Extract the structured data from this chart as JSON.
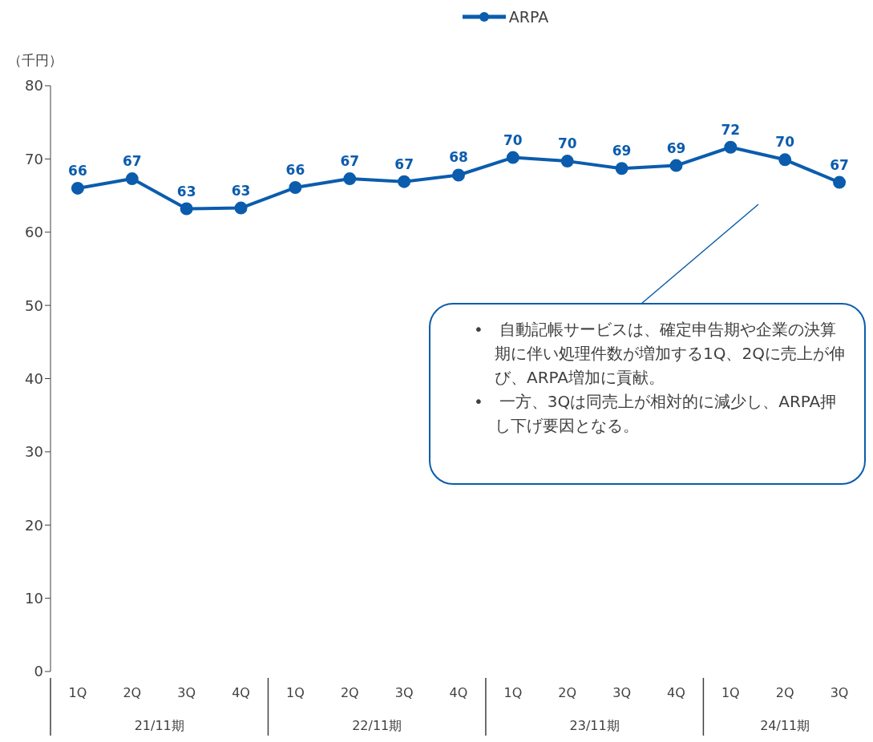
{
  "chart_data": {
    "type": "line",
    "ylabel": "（千円）",
    "categories": [
      "1Q",
      "2Q",
      "3Q",
      "4Q",
      "1Q",
      "2Q",
      "3Q",
      "4Q",
      "1Q",
      "2Q",
      "3Q",
      "4Q",
      "1Q",
      "2Q",
      "3Q"
    ],
    "series": [
      {
        "name": "ARPA",
        "color": "#0b5cad",
        "values": [
          66.0,
          67.3,
          63.2,
          63.3,
          66.1,
          67.3,
          66.9,
          67.8,
          70.2,
          69.7,
          68.7,
          69.1,
          71.6,
          69.9,
          66.8
        ],
        "value_labels": [
          "66",
          "67",
          "63",
          "63",
          "66",
          "67",
          "67",
          "68",
          "70",
          "70",
          "69",
          "69",
          "72",
          "70",
          "67"
        ]
      }
    ],
    "ylim": [
      0,
      80
    ],
    "yticks": [
      0,
      10,
      20,
      30,
      40,
      50,
      60,
      70,
      80
    ],
    "grid": false,
    "legend": "top",
    "marker": "circle",
    "line_style": "solid",
    "annotations": [
      "21/11期",
      "22/11期",
      "23/11期",
      "24/11期",
      "•　自動記帳サービスは、確定申告期や企業の決算期に伴い処理件数が増加する1Q、2Qに売上が伸び、ARPA増加に貢献。",
      "•　一方、3Qは同売上が相対的に減少し、ARPA押し下げ要因となる。"
    ]
  }
}
